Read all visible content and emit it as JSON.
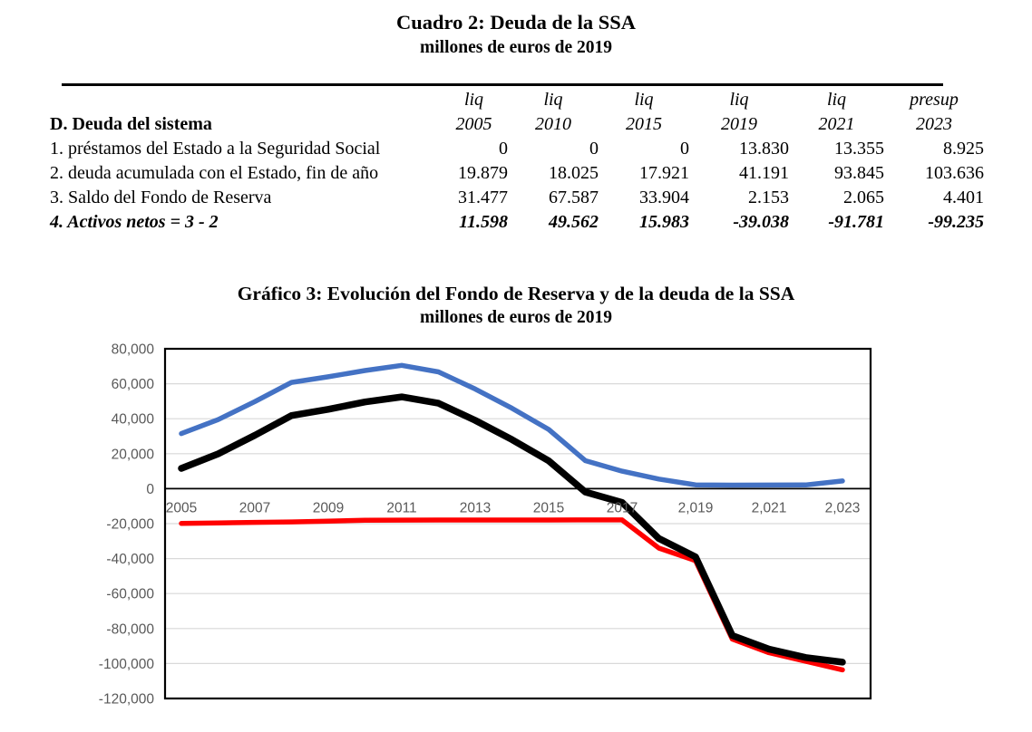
{
  "document": {
    "table_title": "Cuadro 2: Deuda de la SSA",
    "table_subtitle": "millones de euros de 2019",
    "chart_title": "Gráfico 3: Evolución del Fondo de Reserva y de la deuda de la SSA",
    "chart_subtitle": "millones de euros de 2019"
  },
  "table": {
    "header_types": [
      "liq",
      "liq",
      "liq",
      "liq",
      "liq",
      "presup"
    ],
    "header_label": "D. Deuda del sistema",
    "header_years": [
      "2005",
      "2010",
      "2015",
      "2019",
      "2021",
      "2023"
    ],
    "rows": [
      {
        "label": "1. préstamos del Estado a la Seguridad Social",
        "values": [
          "0",
          "0",
          "0",
          "13.830",
          "13.355",
          "8.925"
        ],
        "emphasis": false
      },
      {
        "label": "2. deuda acumulada con el Estado, fin de año",
        "values": [
          "19.879",
          "18.025",
          "17.921",
          "41.191",
          "93.845",
          "103.636"
        ],
        "emphasis": false
      },
      {
        "label": "3. Saldo del Fondo de Reserva",
        "values": [
          "31.477",
          "67.587",
          "33.904",
          "2.153",
          "2.065",
          "4.401"
        ],
        "emphasis": false
      },
      {
        "label": "4. Activos netos = 3 - 2",
        "values": [
          "11.598",
          "49.562",
          "15.983",
          "-39.038",
          "-91.781",
          "-99.235"
        ],
        "emphasis": true
      }
    ]
  },
  "chart_data": {
    "type": "line",
    "title": "Gráfico 3: Evolución del Fondo de Reserva y de la deuda de la SSA",
    "subtitle": "millones de euros de 2019",
    "x": [
      2005,
      2006,
      2007,
      2008,
      2009,
      2010,
      2011,
      2012,
      2013,
      2014,
      2015,
      2016,
      2017,
      2018,
      2019,
      2020,
      2021,
      2022,
      2023
    ],
    "x_ticks": [
      {
        "year": 2005,
        "label": "2005"
      },
      {
        "year": 2007,
        "label": "2007"
      },
      {
        "year": 2009,
        "label": "2009"
      },
      {
        "year": 2011,
        "label": "2011"
      },
      {
        "year": 2013,
        "label": "2013"
      },
      {
        "year": 2015,
        "label": "2015"
      },
      {
        "year": 2017,
        "label": "2017"
      },
      {
        "year": 2019,
        "label": "2,019"
      },
      {
        "year": 2021,
        "label": "2,021"
      },
      {
        "year": 2023,
        "label": "2,023"
      }
    ],
    "ylim": [
      -120000,
      80000
    ],
    "y_ticks": [
      {
        "value": 80000,
        "label": "80,000"
      },
      {
        "value": 60000,
        "label": "60,000"
      },
      {
        "value": 40000,
        "label": "40,000"
      },
      {
        "value": 20000,
        "label": "20,000"
      },
      {
        "value": 0,
        "label": "0"
      },
      {
        "value": -20000,
        "label": "-20,000"
      },
      {
        "value": -40000,
        "label": "-40,000"
      },
      {
        "value": -60000,
        "label": "-60,000"
      },
      {
        "value": -80000,
        "label": "-80,000"
      },
      {
        "value": -100000,
        "label": "-100,000"
      },
      {
        "value": -120000,
        "label": "-120,000"
      }
    ],
    "grid": true,
    "legend": "none",
    "series": [
      {
        "id": "fondo-reserva",
        "name": "Saldo del Fondo de Reserva",
        "color": "#4472C4",
        "stroke_width": 5.5,
        "values": [
          31477,
          39500,
          49800,
          60800,
          64000,
          67587,
          70500,
          66800,
          57000,
          46000,
          33904,
          16000,
          10000,
          5500,
          2153,
          2000,
          2065,
          2100,
          4401
        ]
      },
      {
        "id": "deuda-estado",
        "name": "Deuda acumulada con el Estado (con signo negativo)",
        "color": "#FF0000",
        "stroke_width": 5.5,
        "values": [
          -19879,
          -19600,
          -19300,
          -19000,
          -18600,
          -18025,
          -18000,
          -17950,
          -17930,
          -17925,
          -17921,
          -17900,
          -17900,
          -34000,
          -41191,
          -86000,
          -93845,
          -98700,
          -103636
        ]
      },
      {
        "id": "activos-netos",
        "name": "Activos netos = 3 - 2",
        "color": "#000000",
        "stroke_width": 7.5,
        "values": [
          11598,
          19900,
          30500,
          41800,
          45400,
          49562,
          52500,
          48850,
          39070,
          28075,
          15983,
          -1900,
          -7900,
          -28500,
          -39038,
          -84000,
          -91781,
          -96600,
          -99235
        ]
      }
    ],
    "colors": {
      "grid": "#D9D9D9",
      "axis": "#000000",
      "border": "#000000",
      "tick_text": "#595959"
    }
  }
}
